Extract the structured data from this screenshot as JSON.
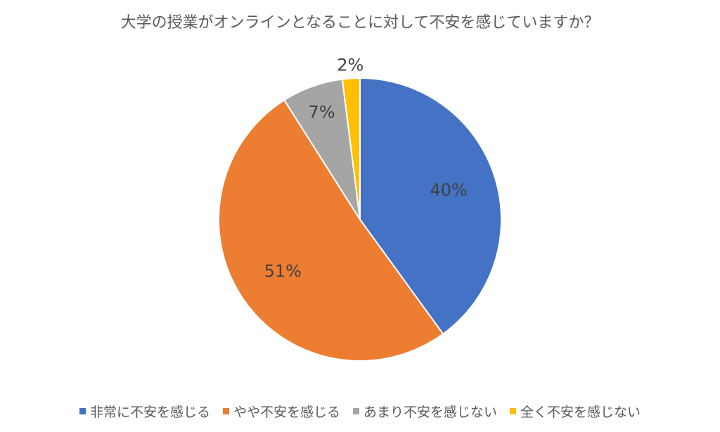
{
  "chart_data": {
    "type": "pie",
    "title": "大学の授業がオンラインとなることに対して不安を感じていますか？",
    "categories": [
      "非常に不安を感じる",
      "やや不安を感じる",
      "あまり不安を感じない",
      "全く不安を感じない"
    ],
    "values": [
      40,
      51,
      7,
      2
    ],
    "data_labels": [
      "40%",
      "51%",
      "7%",
      "2%"
    ],
    "colors": [
      "#4472C4",
      "#ED7D31",
      "#A5A5A5",
      "#FFC000"
    ],
    "legend_position": "bottom"
  }
}
